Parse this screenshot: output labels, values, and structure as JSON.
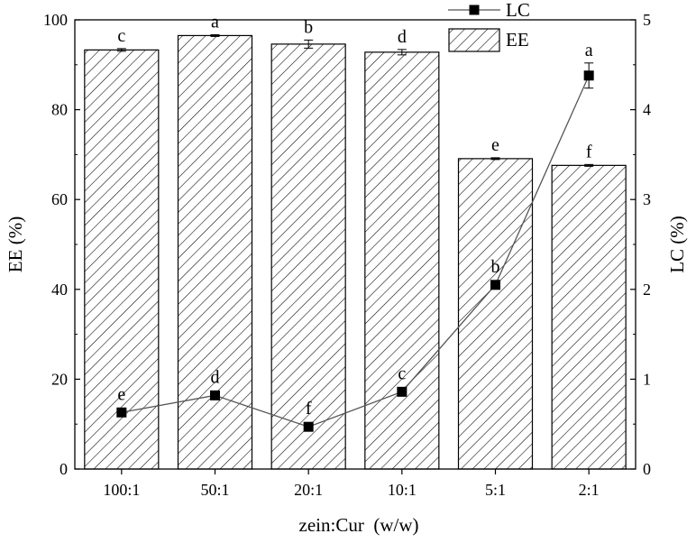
{
  "chart_data": {
    "type": "bar",
    "categories": [
      "100:1",
      "50:1",
      "20:1",
      "10:1",
      "5:1",
      "2:1"
    ],
    "xlabel": "zein:Cur  (w/w)",
    "ylabel": "EE (%)",
    "y2label": "LC (%)",
    "ylim": [
      0,
      100
    ],
    "y2lim": [
      0,
      5
    ],
    "yticks": [
      "0",
      "20",
      "40",
      "60",
      "80",
      "100"
    ],
    "y2ticks": [
      "0",
      "1",
      "2",
      "3",
      "4",
      "5"
    ],
    "grid": false,
    "legend_position": "top-right",
    "series": [
      {
        "name": "EE",
        "type": "bar",
        "axis": "left",
        "pattern": "diagonal-hatch",
        "values": [
          93.3,
          96.5,
          94.6,
          92.8,
          69.1,
          67.6
        ],
        "errors": [
          0.3,
          0.2,
          0.9,
          0.6,
          0.2,
          0.2
        ],
        "letters": [
          "c",
          "a",
          "b",
          "d",
          "e",
          "f"
        ]
      },
      {
        "name": "LC",
        "type": "line",
        "axis": "right",
        "marker": "square",
        "values": [
          0.63,
          0.82,
          0.47,
          0.86,
          2.05,
          4.38
        ],
        "errors": [
          0.01,
          0.01,
          0.01,
          0.01,
          0.02,
          0.14
        ],
        "letters": [
          "e",
          "d",
          "f",
          "c",
          "b",
          "a"
        ]
      }
    ]
  }
}
